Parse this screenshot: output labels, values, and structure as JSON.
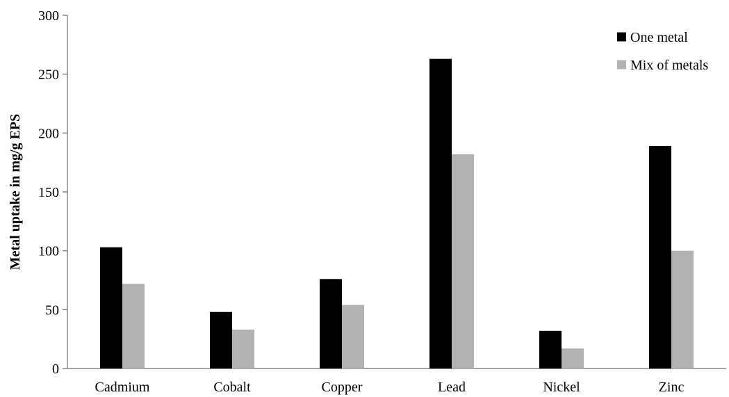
{
  "chart_data": {
    "type": "bar",
    "title": "",
    "xlabel": "",
    "ylabel": "Metal uptake in mg/g EPS",
    "categories": [
      "Cadmium",
      "Cobalt",
      "Copper",
      "Lead",
      "Nickel",
      "Zinc"
    ],
    "series": [
      {
        "name": "One metal",
        "color": "#000000",
        "values": [
          103,
          48,
          76,
          263,
          32,
          189
        ]
      },
      {
        "name": "Mix of metals",
        "color": "#b2b2b2",
        "values": [
          72,
          33,
          54,
          182,
          17,
          100
        ]
      }
    ],
    "ylim": [
      0,
      300
    ],
    "yticks": [
      "0",
      "50",
      "100",
      "150",
      "200",
      "250",
      "300"
    ],
    "grid": false,
    "legend_position": "top-right"
  }
}
